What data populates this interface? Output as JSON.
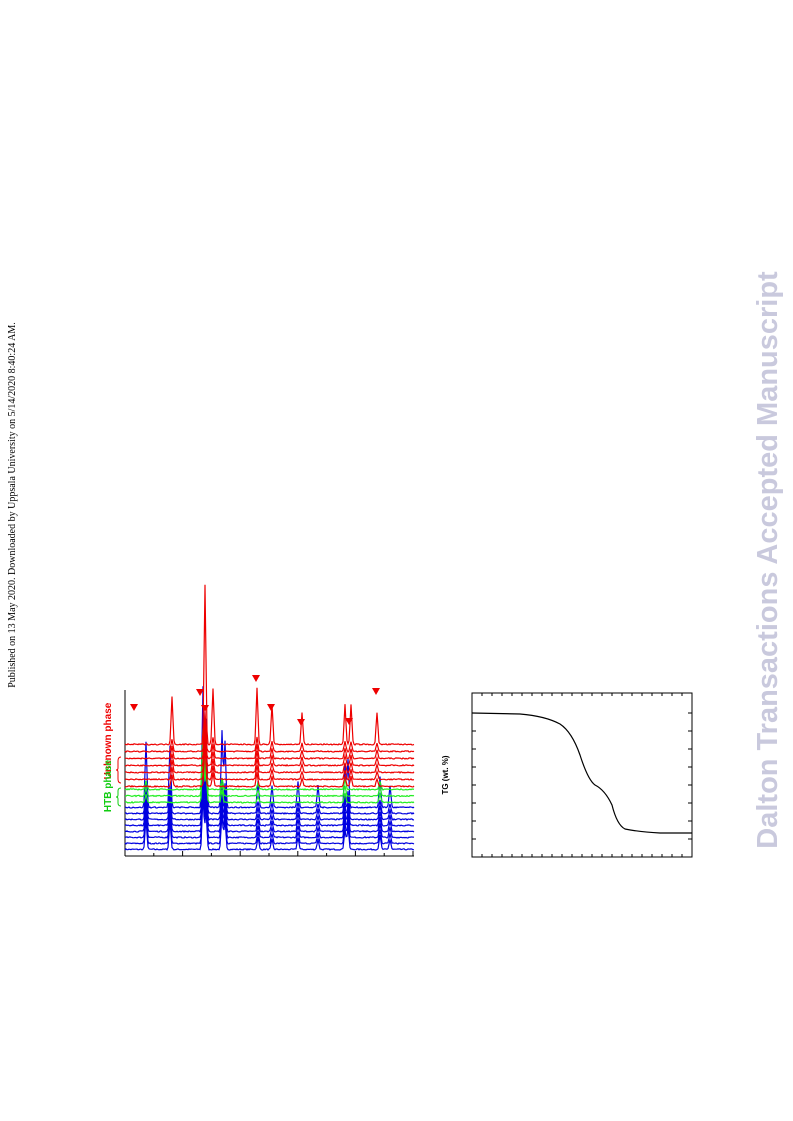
{
  "side_note": "Published on 13 May 2020. Downloaded by Uppsala University on 5/14/2020 8:40:24 AM.",
  "watermark": "Dalton Transactions Accepted Manuscript",
  "figure_left": {
    "labels": [
      "Unknown phase",
      "HTB phase"
    ]
  },
  "figure_right": {
    "y_label": "TG (wt. %)"
  }
}
